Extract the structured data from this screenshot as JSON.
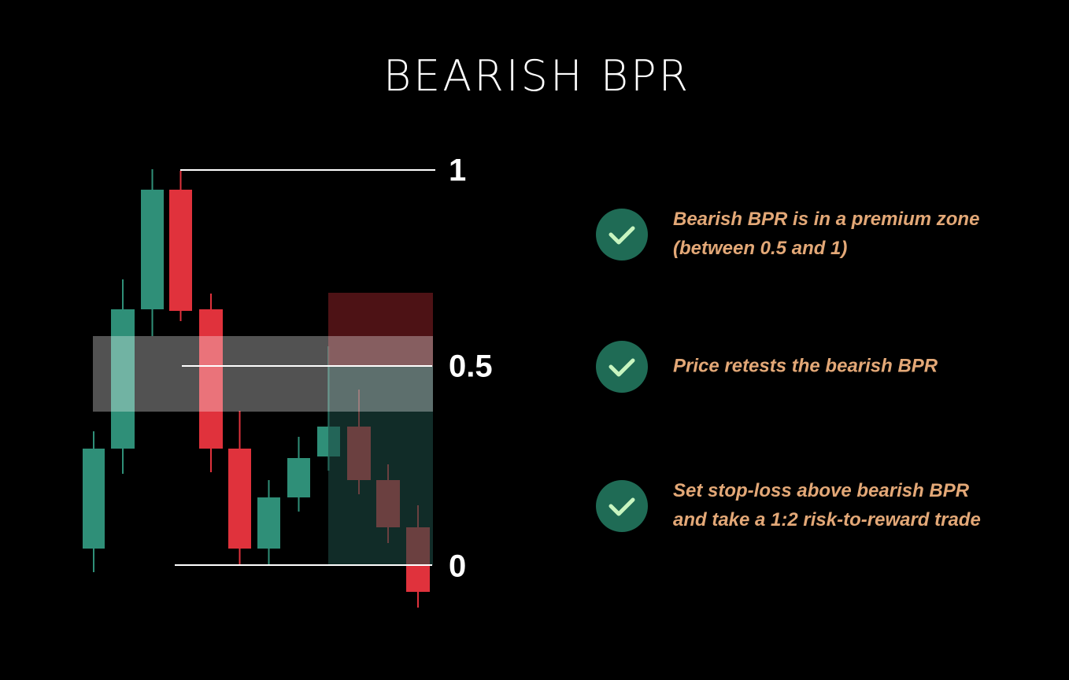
{
  "title": "BEARISH BPR",
  "levels": [
    {
      "label": "1"
    },
    {
      "label": "0.5"
    },
    {
      "label": "0"
    }
  ],
  "points": [
    {
      "lines": [
        "Bearish BPR is in a premium zone",
        "(between 0.5 and 1)"
      ]
    },
    {
      "lines": [
        "Price retests the bearish BPR"
      ]
    },
    {
      "lines": [
        "Set stop-loss above bearish BPR",
        "and take a 1:2 risk-to-reward trade"
      ]
    }
  ]
}
